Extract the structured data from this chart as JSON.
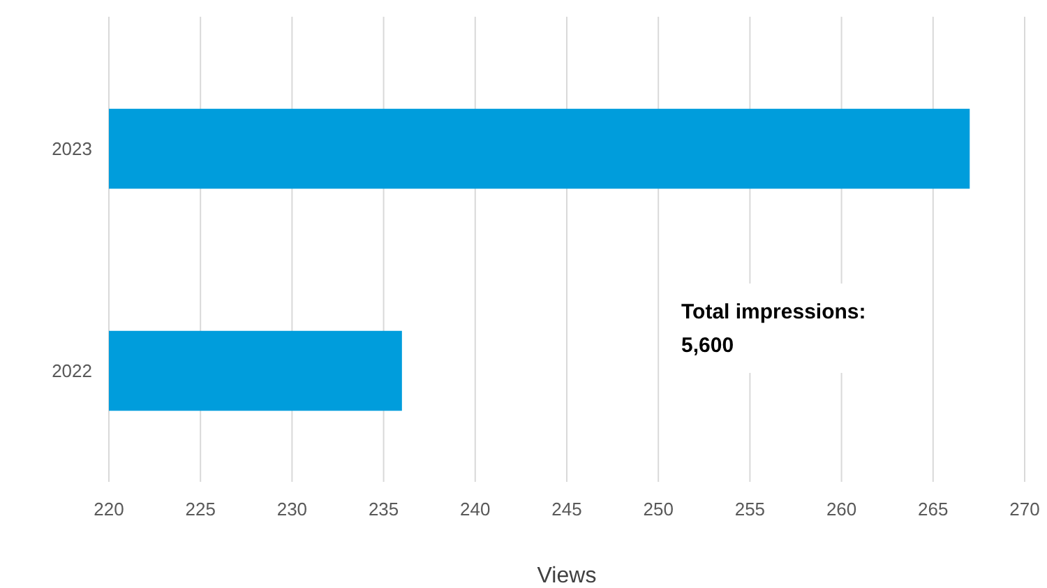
{
  "chart_data": {
    "type": "bar",
    "orientation": "horizontal",
    "categories": [
      "2023",
      "2022"
    ],
    "values": [
      267,
      236
    ],
    "color": "#009ddc",
    "xlim": [
      220,
      270
    ],
    "xticks": [
      220,
      225,
      230,
      235,
      240,
      245,
      250,
      255,
      260,
      265,
      270
    ],
    "xlabel": "Views",
    "grid": "x",
    "annotations": [
      "Total impressions: 5,600"
    ]
  }
}
